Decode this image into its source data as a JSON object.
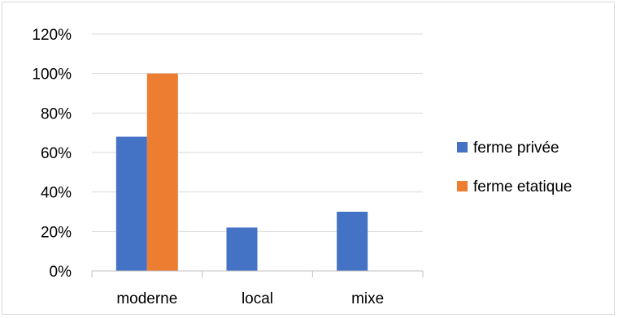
{
  "chart_data": {
    "type": "bar",
    "categories": [
      "moderne",
      "local",
      "mixe"
    ],
    "series": [
      {
        "name": "ferme privée",
        "values": [
          0.68,
          0.22,
          0.3
        ],
        "color": "#4472C4"
      },
      {
        "name": "ferme etatique",
        "values": [
          1.0,
          0.0,
          0.0
        ],
        "color": "#ED7D31"
      }
    ],
    "ylim": [
      0,
      1.2
    ],
    "yticks": [
      "0%",
      "20%",
      "40%",
      "60%",
      "80%",
      "100%",
      "120%"
    ],
    "grid": true,
    "legend_position": "right"
  }
}
